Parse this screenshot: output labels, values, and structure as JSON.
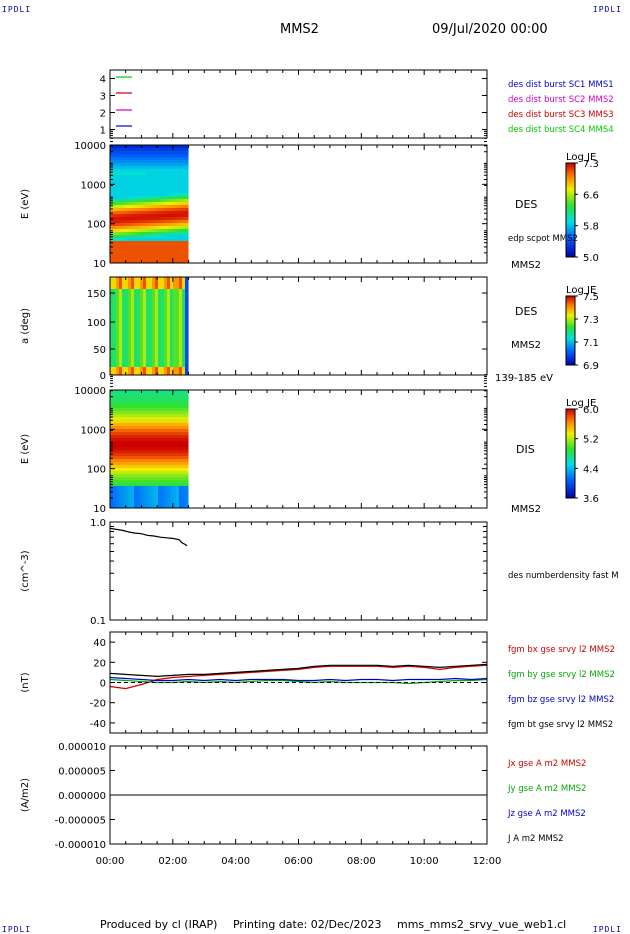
{
  "corners": {
    "tl": "IPDLI",
    "tr": "IPDLI",
    "bl": "IPDLI",
    "br": "IPDLI"
  },
  "header": {
    "satellite": "MMS2",
    "date": "09/Jul/2020 00:00"
  },
  "footer": {
    "producer": "Produced by cl (IRAP)",
    "printing_date": "Printing date: 02/Dec/2023",
    "filename": "mms_mms2_srvy_vue_web1.cl"
  },
  "colors": {
    "sc1": "#0000cc",
    "sc2": "#cc00cc",
    "sc3": "#cc0000",
    "sc4": "#00cc00",
    "bx": "#cc0000",
    "by": "#00aa00",
    "bz": "#0000cc",
    "bt": "#000000"
  },
  "chart_data": [
    {
      "id": "burst",
      "type": "line",
      "ylim": [
        0.5,
        4.5
      ],
      "ytick_labels": [
        "4",
        "3",
        "2",
        "1"
      ],
      "series": [
        {
          "name": "des dist burst SC1 MMS1",
          "level": 1,
          "color": "#0000cc"
        },
        {
          "name": "des dist burst SC2 MMS2",
          "level": 2,
          "color": "#cc00cc"
        },
        {
          "name": "des dist burst SC3 MMS3",
          "level": 3,
          "color": "#cc0000"
        },
        {
          "name": "des dist burst SC4 MMS4",
          "level": 4,
          "color": "#00cc00"
        }
      ]
    },
    {
      "id": "des_energy",
      "type": "heatmap",
      "ylabel": "E (eV)",
      "yscale": "log",
      "ytick_labels": [
        "10000",
        "1000",
        "100",
        "10"
      ],
      "instrument": "DES",
      "right_label": "edp scpot MMS2",
      "sat_label": "MMS2",
      "colorbar": {
        "title": "Log JE",
        "ticks": [
          "7.3",
          "6.6",
          "5.8",
          "5.0"
        ],
        "range": [
          5.0,
          7.3
        ]
      },
      "data_end_hour": 2.5
    },
    {
      "id": "des_pitch",
      "type": "heatmap",
      "ylabel": "a (deg)",
      "ylim": [
        0,
        180
      ],
      "ytick_labels": [
        "150",
        "100",
        "50",
        "0"
      ],
      "instrument": "DES",
      "sat_label": "MMS2",
      "energy_range": "139-185 eV",
      "colorbar": {
        "title": "Log JE",
        "ticks": [
          "7.5",
          "7.3",
          "7.1",
          "6.9"
        ],
        "range": [
          6.9,
          7.5
        ]
      },
      "data_end_hour": 2.5
    },
    {
      "id": "dis_energy",
      "type": "heatmap",
      "ylabel": "E (eV)",
      "yscale": "log",
      "ytick_labels": [
        "10000",
        "1000",
        "100",
        "10"
      ],
      "instrument": "DIS",
      "sat_label": "MMS2",
      "colorbar": {
        "title": "Log JE",
        "ticks": [
          "6.0",
          "5.2",
          "4.4",
          "3.6"
        ],
        "range": [
          3.6,
          6.0
        ]
      },
      "data_end_hour": 2.5
    },
    {
      "id": "density",
      "type": "line",
      "ylabel": "(cm^-3)",
      "yscale": "log",
      "ylim": [
        0.1,
        1.0
      ],
      "ytick_labels": [
        "1.0",
        "0.1"
      ],
      "series": [
        {
          "name": "des numberdensity fast M",
          "color": "#000000",
          "x": [
            0.0,
            0.2,
            0.4,
            0.6,
            0.8,
            1.0,
            1.2,
            1.4,
            1.6,
            1.8,
            2.0,
            2.2,
            2.3,
            2.4,
            2.45
          ],
          "y": [
            0.86,
            0.84,
            0.82,
            0.79,
            0.77,
            0.76,
            0.73,
            0.72,
            0.7,
            0.69,
            0.68,
            0.66,
            0.61,
            0.59,
            0.57
          ]
        }
      ]
    },
    {
      "id": "bfield",
      "type": "line",
      "ylabel": "(nT)",
      "ylim": [
        -50,
        50
      ],
      "ytick_labels": [
        "40",
        "20",
        "0",
        "-20",
        "-40"
      ],
      "series": [
        {
          "name": "fgm bx gse srvy l2 MMS2",
          "color": "#cc0000",
          "x": [
            0,
            0.5,
            1,
            1.5,
            2,
            2.5,
            3,
            3.5,
            4,
            4.5,
            5,
            5.5,
            6,
            6.5,
            7,
            7.5,
            8,
            8.5,
            9,
            9.5,
            10,
            10.5,
            11,
            11.5,
            12
          ],
          "y": [
            -4,
            -6,
            -2,
            3,
            5,
            6,
            7,
            8,
            9,
            10,
            11,
            12,
            13,
            15,
            16,
            16,
            16,
            16,
            15,
            16,
            15,
            13,
            15,
            16,
            17
          ]
        },
        {
          "name": "fgm by gse srvy l2 MMS2",
          "color": "#00aa00",
          "x": [
            0,
            0.5,
            1,
            1.5,
            2,
            2.5,
            3,
            3.5,
            4,
            4.5,
            5,
            5.5,
            6,
            6.5,
            7,
            7.5,
            8,
            8.5,
            9,
            9.5,
            10,
            10.5,
            11,
            11.5,
            12
          ],
          "y": [
            3,
            2,
            1,
            0,
            0,
            1,
            0,
            1,
            0,
            1,
            2,
            2,
            1,
            0,
            1,
            0,
            0,
            0,
            0,
            -1,
            0,
            1,
            2,
            2,
            3
          ]
        },
        {
          "name": "fgm bz gse srvy l2 MMS2",
          "color": "#0000cc",
          "x": [
            0,
            0.5,
            1,
            1.5,
            2,
            2.5,
            3,
            3.5,
            4,
            4.5,
            5,
            5.5,
            6,
            6.5,
            7,
            7.5,
            8,
            8.5,
            9,
            9.5,
            10,
            10.5,
            11,
            11.5,
            12
          ],
          "y": [
            5,
            4,
            3,
            2,
            2,
            3,
            2,
            3,
            2,
            3,
            3,
            3,
            2,
            2,
            3,
            2,
            3,
            3,
            2,
            3,
            3,
            3,
            4,
            3,
            4
          ]
        },
        {
          "name": "fgm bt gse srvy l2 MMS2",
          "color": "#000000",
          "x": [
            0,
            0.5,
            1,
            1.5,
            2,
            2.5,
            3,
            3.5,
            4,
            4.5,
            5,
            5.5,
            6,
            6.5,
            7,
            7.5,
            8,
            8.5,
            9,
            9.5,
            10,
            10.5,
            11,
            11.5,
            12
          ],
          "y": [
            9,
            8,
            7,
            6,
            7,
            8,
            8,
            9,
            10,
            11,
            12,
            13,
            14,
            16,
            17,
            17,
            17,
            17,
            16,
            17,
            16,
            15,
            16,
            17,
            18
          ]
        }
      ]
    },
    {
      "id": "current",
      "type": "line",
      "ylabel": "(A/m2)",
      "ylim": [
        -1e-05,
        1e-05
      ],
      "ytick_labels": [
        "0.000010",
        "0.000005",
        "0.000000",
        "-0.000005",
        "-0.000010"
      ],
      "series": [
        {
          "name": "Jx gse A m2 MMS2",
          "color": "#cc0000"
        },
        {
          "name": "Jy gse A m2 MMS2",
          "color": "#00aa00"
        },
        {
          "name": "Jz gse A m2 MMS2",
          "color": "#0000cc"
        },
        {
          "name": "J A m2 MMS2",
          "color": "#000000"
        }
      ]
    }
  ],
  "x_axis": {
    "range_hours": [
      0,
      12
    ],
    "tick_labels": [
      "00:00",
      "02:00",
      "04:00",
      "06:00",
      "08:00",
      "10:00",
      "12:00"
    ]
  }
}
